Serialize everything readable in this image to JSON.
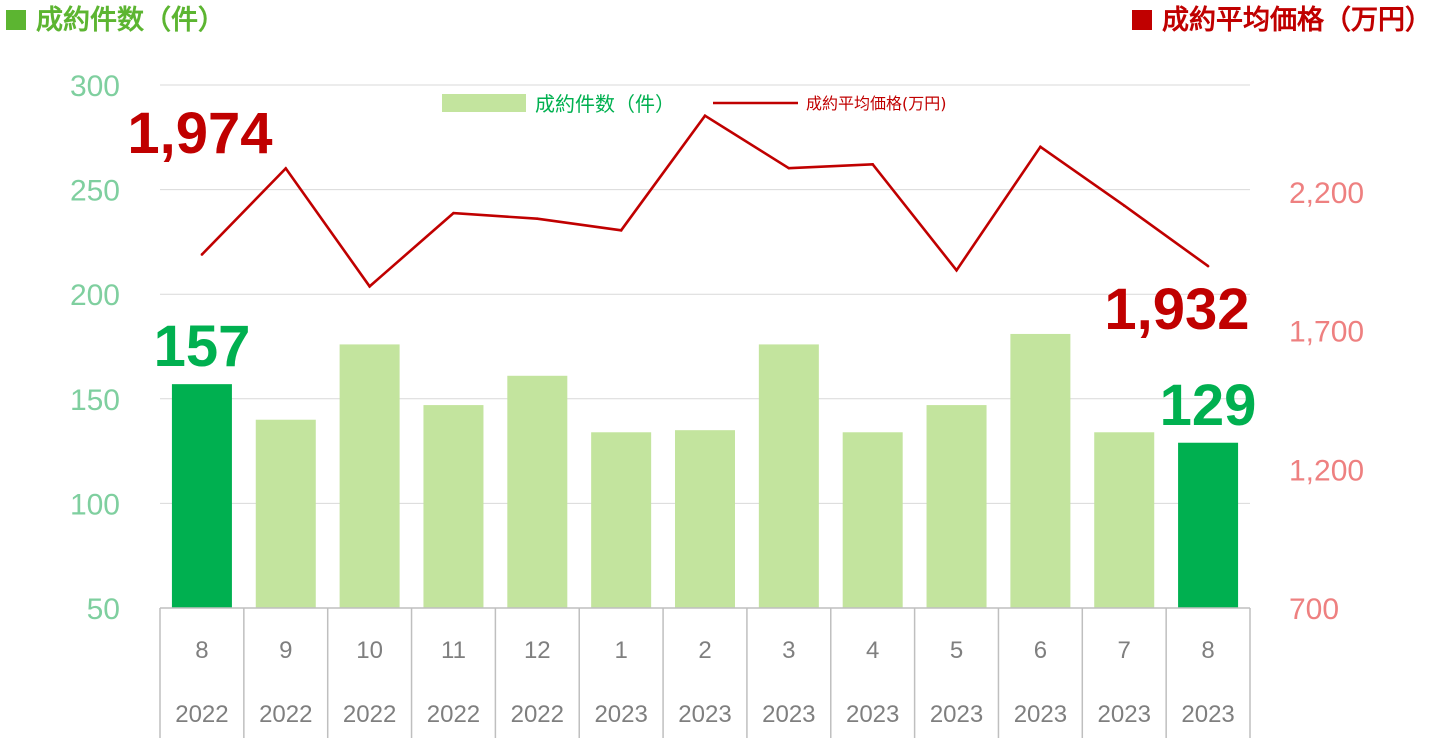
{
  "header": {
    "left_title": "成約件数（件）",
    "right_title": "成約平均価格（万円）"
  },
  "colors": {
    "bar_light": "#c3e49e",
    "bar_highlight": "#00b050",
    "line": "#c00000",
    "left_axis_text": "#7fcf9f",
    "right_axis_text": "#ee8080",
    "grid": "#d9d9d9",
    "table_border": "#bfbfbf"
  },
  "chart_data": {
    "type": "bar",
    "categories": [
      "8",
      "9",
      "10",
      "11",
      "12",
      "1",
      "2",
      "3",
      "4",
      "5",
      "6",
      "7",
      "8"
    ],
    "category_years": [
      "2022",
      "2022",
      "2022",
      "2022",
      "2022",
      "2023",
      "2023",
      "2023",
      "2023",
      "2023",
      "2023",
      "2023",
      "2023"
    ],
    "series": [
      {
        "name": "成約件数（件）",
        "type": "bar",
        "axis": "left",
        "values": [
          157,
          140,
          176,
          147,
          161,
          134,
          135,
          176,
          134,
          147,
          181,
          134,
          129
        ],
        "highlight_indices": [
          0,
          12
        ]
      },
      {
        "name": "成約平均価格(万円)",
        "type": "line",
        "axis": "right",
        "values": [
          1974,
          2284,
          1859,
          2123,
          2103,
          2061,
          2474,
          2285,
          2299,
          1917,
          2362,
          2150,
          1932
        ]
      }
    ],
    "left_axis": {
      "min": 50,
      "max": 300,
      "ticks": [
        "50",
        "100",
        "150",
        "200",
        "250",
        "300"
      ]
    },
    "right_axis": {
      "min": 700,
      "max": 2700,
      "ticks": [
        "700",
        "1,200",
        "1,700",
        "2,200"
      ]
    },
    "annotations": [
      {
        "text": "1,974",
        "series": "line",
        "index": 0
      },
      {
        "text": "1,932",
        "series": "line",
        "index": 12
      },
      {
        "text": "157",
        "series": "bar",
        "index": 0
      },
      {
        "text": "129",
        "series": "bar",
        "index": 12
      }
    ],
    "legend": {
      "position": "top-center"
    },
    "grid": true
  }
}
